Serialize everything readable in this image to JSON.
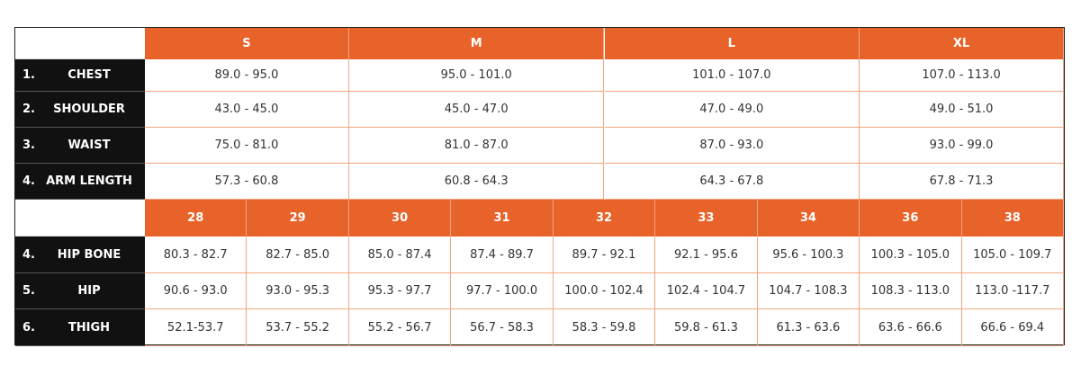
{
  "top_table": {
    "headers": [
      "S",
      "M",
      "L",
      "XL"
    ],
    "rows": [
      {
        "number": "1.",
        "label": "CHEST",
        "values": [
          "89.0 - 95.0",
          "95.0 - 101.0",
          "101.0 - 107.0",
          "107.0 - 113.0"
        ]
      },
      {
        "number": "2.",
        "label": "SHOULDER",
        "values": [
          "43.0 - 45.0",
          "45.0 - 47.0",
          "47.0 - 49.0",
          "49.0 - 51.0"
        ]
      },
      {
        "number": "3.",
        "label": "WAIST",
        "values": [
          "75.0 - 81.0",
          "81.0 - 87.0",
          "87.0 - 93.0",
          "93.0 - 99.0"
        ]
      },
      {
        "number": "4.",
        "label": "ARM LENGTH",
        "values": [
          "57.3 - 60.8",
          "60.8 - 64.3",
          "64.3 - 67.8",
          "67.8 - 71.3"
        ]
      }
    ]
  },
  "bottom_table": {
    "headers": [
      "28",
      "29",
      "30",
      "31",
      "32",
      "33",
      "34",
      "36",
      "38"
    ],
    "rows": [
      {
        "number": "4.",
        "label": "HIP BONE",
        "values": [
          "80.3 - 82.7",
          "82.7 - 85.0",
          "85.0 - 87.4",
          "87.4 - 89.7",
          "89.7 - 92.1",
          "92.1 - 95.6",
          "95.6 - 100.3",
          "100.3 - 105.0",
          "105.0 - 109.7"
        ]
      },
      {
        "number": "5.",
        "label": "HIP",
        "values": [
          "90.6 - 93.0",
          "93.0 - 95.3",
          "95.3 - 97.7",
          "97.7 - 100.0",
          "100.0 - 102.4",
          "102.4 - 104.7",
          "104.7 - 108.3",
          "108.3 - 113.0",
          "113.0 -117.7"
        ]
      },
      {
        "number": "6.",
        "label": "THIGH",
        "values": [
          "52.1-53.7",
          "53.7 - 55.2",
          "55.2 - 56.7",
          "56.7 - 58.3",
          "58.3 - 59.8",
          "59.8 - 61.3",
          "61.3 - 63.6",
          "63.6 - 66.6",
          "66.6 - 69.4"
        ]
      }
    ]
  }
}
